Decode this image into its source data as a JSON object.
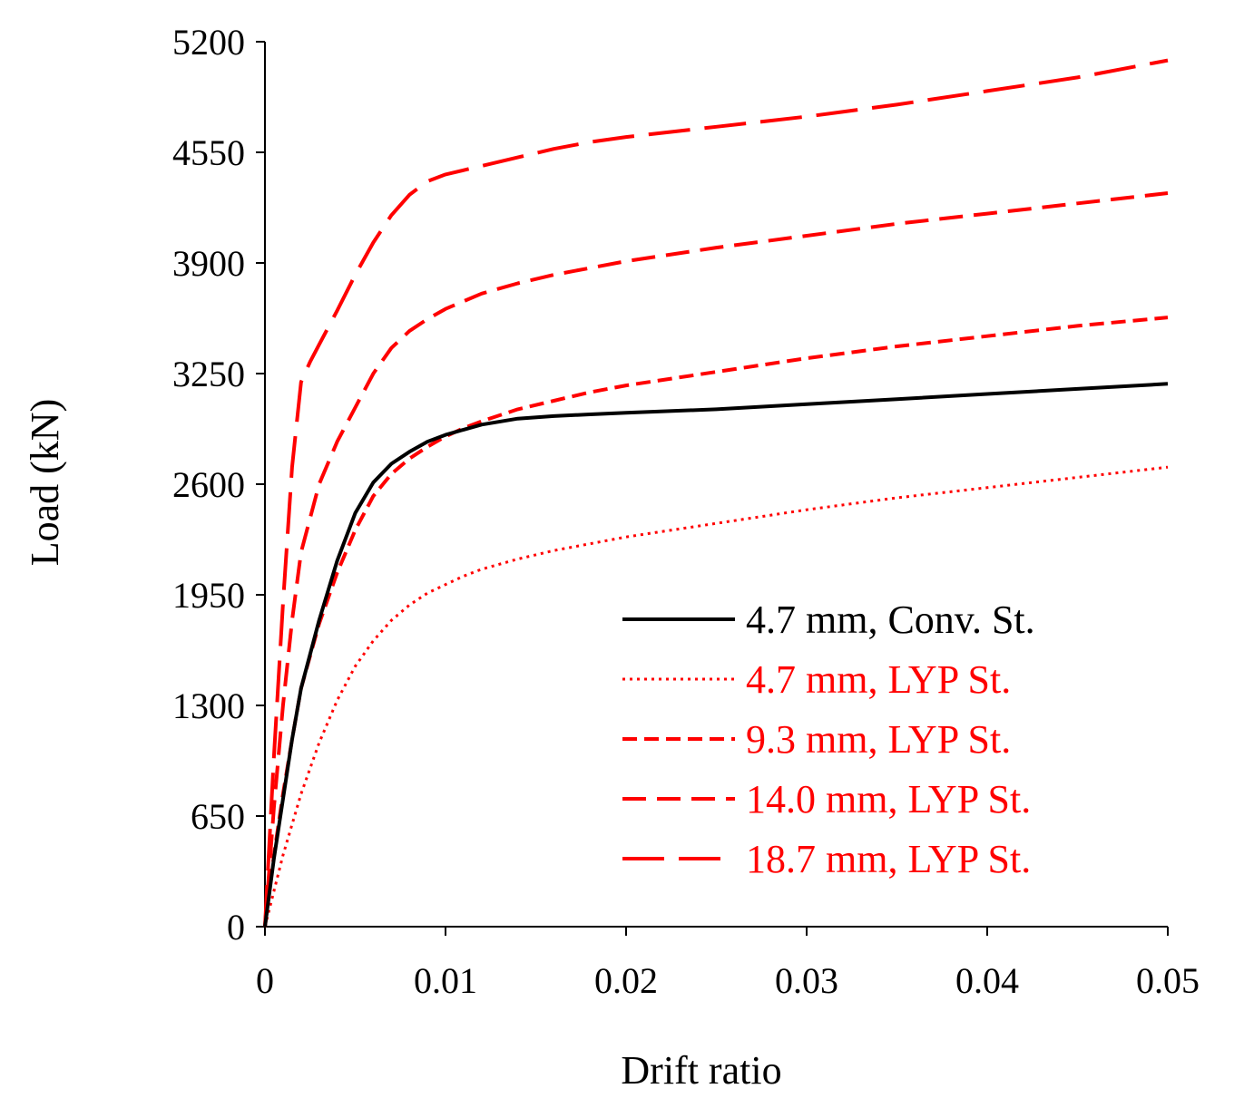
{
  "chart_data": {
    "type": "line",
    "title": "",
    "xlabel": "Drift ratio",
    "ylabel": "Load (kN)",
    "xlim": [
      0,
      0.05
    ],
    "ylim": [
      0,
      5200
    ],
    "xticks": [
      0,
      0.01,
      0.02,
      0.03,
      0.04,
      0.05
    ],
    "xtick_labels": [
      "0",
      "0.01",
      "0.02",
      "0.03",
      "0.04",
      "0.05"
    ],
    "yticks": [
      0,
      650,
      1300,
      1950,
      2600,
      3250,
      3900,
      4550,
      5200
    ],
    "ytick_labels": [
      "0",
      "650",
      "1300",
      "1950",
      "2600",
      "3250",
      "3900",
      "4550",
      "5200"
    ],
    "grid": false,
    "legend_position": "bottom-right",
    "series": [
      {
        "name": "4.7 mm, Conv. St.",
        "color": "#000000",
        "dash": "solid",
        "x": [
          0,
          0.0005,
          0.001,
          0.0015,
          0.002,
          0.003,
          0.004,
          0.005,
          0.006,
          0.007,
          0.008,
          0.009,
          0.01,
          0.011,
          0.012,
          0.014,
          0.016,
          0.018,
          0.02,
          0.025,
          0.03,
          0.035,
          0.04,
          0.045,
          0.05
        ],
        "y": [
          0,
          400,
          750,
          1100,
          1400,
          1800,
          2150,
          2430,
          2610,
          2720,
          2790,
          2850,
          2890,
          2920,
          2950,
          2985,
          3000,
          3010,
          3020,
          3040,
          3070,
          3100,
          3130,
          3160,
          3190
        ]
      },
      {
        "name": "4.7 mm, LYP St.",
        "color": "#ff0000",
        "dash": "dotted",
        "x": [
          0,
          0.001,
          0.002,
          0.003,
          0.004,
          0.005,
          0.006,
          0.007,
          0.008,
          0.009,
          0.01,
          0.011,
          0.012,
          0.014,
          0.016,
          0.018,
          0.02,
          0.025,
          0.03,
          0.035,
          0.04,
          0.045,
          0.05
        ],
        "y": [
          0,
          420,
          780,
          1080,
          1330,
          1530,
          1680,
          1800,
          1890,
          1960,
          2010,
          2060,
          2100,
          2160,
          2210,
          2250,
          2290,
          2370,
          2450,
          2520,
          2580,
          2640,
          2700
        ]
      },
      {
        "name": "9.3 mm, LYP St.",
        "color": "#ff0000",
        "dash": "short-dash",
        "x": [
          0,
          0.0005,
          0.001,
          0.0015,
          0.002,
          0.003,
          0.004,
          0.005,
          0.006,
          0.007,
          0.008,
          0.009,
          0.01,
          0.011,
          0.012,
          0.014,
          0.016,
          0.018,
          0.02,
          0.025,
          0.03,
          0.035,
          0.04,
          0.045,
          0.05
        ],
        "y": [
          0,
          420,
          780,
          1100,
          1400,
          1780,
          2080,
          2330,
          2530,
          2660,
          2750,
          2820,
          2880,
          2930,
          2970,
          3040,
          3090,
          3140,
          3180,
          3260,
          3340,
          3410,
          3470,
          3530,
          3580
        ]
      },
      {
        "name": "14.0 mm, LYP St.",
        "color": "#ff0000",
        "dash": "medium-dash",
        "x": [
          0,
          0.0005,
          0.001,
          0.0015,
          0.002,
          0.003,
          0.004,
          0.005,
          0.006,
          0.007,
          0.008,
          0.009,
          0.01,
          0.012,
          0.014,
          0.016,
          0.018,
          0.02,
          0.025,
          0.03,
          0.035,
          0.04,
          0.045,
          0.05
        ],
        "y": [
          0,
          700,
          1300,
          1800,
          2200,
          2600,
          2850,
          3050,
          3250,
          3400,
          3500,
          3570,
          3630,
          3720,
          3780,
          3830,
          3870,
          3910,
          3990,
          4060,
          4130,
          4190,
          4250,
          4310
        ]
      },
      {
        "name": "18.7 mm, LYP St.",
        "color": "#ff0000",
        "dash": "long-dash",
        "x": [
          0,
          0.0005,
          0.001,
          0.0015,
          0.002,
          0.0025,
          0.003,
          0.004,
          0.005,
          0.006,
          0.007,
          0.008,
          0.009,
          0.01,
          0.012,
          0.014,
          0.016,
          0.018,
          0.02,
          0.025,
          0.03,
          0.035,
          0.04,
          0.045,
          0.05
        ],
        "y": [
          0,
          1000,
          1900,
          2700,
          3200,
          3320,
          3420,
          3620,
          3830,
          4020,
          4180,
          4300,
          4380,
          4420,
          4470,
          4520,
          4570,
          4610,
          4640,
          4700,
          4760,
          4830,
          4910,
          4990,
          5090
        ]
      }
    ]
  }
}
